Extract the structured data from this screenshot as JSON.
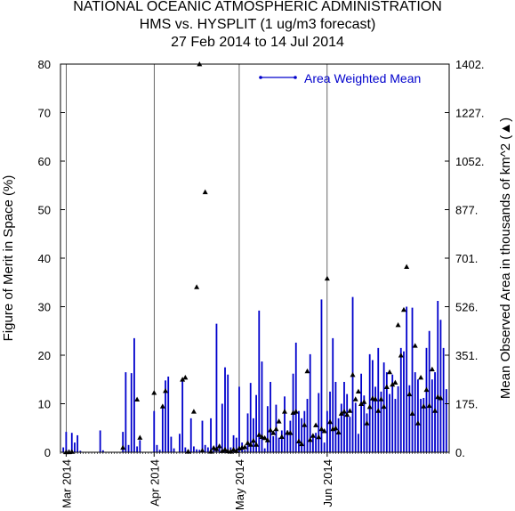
{
  "header": {
    "line1": "NATIONAL OCEANIC ATMOSPHERIC ADMINISTRATION",
    "line2": "HMS vs. HYSPLIT (1 ug/m3 forecast)",
    "line3": "27 Feb 2014 to 14 Jul 2014"
  },
  "colors": {
    "series": "#0000cc",
    "triangles": "#000000",
    "frame": "#000000",
    "gridlines": "#000000",
    "background": "#ffffff"
  },
  "chart_data": {
    "type": "bar",
    "title": "HMS vs. HYSPLIT (1 ug/m3 forecast)",
    "date_range": "27 Feb 2014 to 14 Jul 2014",
    "x_start": "2014-02-27",
    "x_end": "2014-07-14",
    "month_ticks": [
      {
        "date": "2014-03-01",
        "label": "Mar 2014"
      },
      {
        "date": "2014-04-01",
        "label": "Apr 2014"
      },
      {
        "date": "2014-05-01",
        "label": "May 2014"
      },
      {
        "date": "2014-06-01",
        "label": "Jun 2014"
      }
    ],
    "vertical_gridlines": [
      "2014-03-01",
      "2014-04-01",
      "2014-05-01",
      "2014-06-01"
    ],
    "ylabel_left": "Figure of Merit in Space (%)",
    "ylim_left": [
      0,
      80
    ],
    "yticks_left": [
      "0",
      "10",
      "20",
      "30",
      "40",
      "50",
      "60",
      "70",
      "80"
    ],
    "ylabel_right": "Mean Observed Area in thousands of km^2 (▲)",
    "ylim_right": [
      0,
      1402
    ],
    "yticks_right": [
      "0.",
      "175.",
      "351.",
      "526.",
      "701.",
      "877.",
      "1052.",
      "1227.",
      "1402."
    ],
    "legend": {
      "label": "Area Weighted Mean",
      "position": "top-right"
    },
    "series": [
      {
        "name": "Area Weighted Mean",
        "type": "bar",
        "axis": "left",
        "points": [
          [
            "2014-02-28",
            1.0
          ],
          [
            "2014-03-01",
            4.2
          ],
          [
            "2014-03-02",
            0.5
          ],
          [
            "2014-03-03",
            4.0
          ],
          [
            "2014-03-04",
            2.0
          ],
          [
            "2014-03-05",
            3.5
          ],
          [
            "2014-03-06",
            0.3
          ],
          [
            "2014-03-13",
            4.5
          ],
          [
            "2014-03-14",
            0.4
          ],
          [
            "2014-03-21",
            4.2
          ],
          [
            "2014-03-22",
            16.5
          ],
          [
            "2014-03-23",
            1.5
          ],
          [
            "2014-03-24",
            16.3
          ],
          [
            "2014-03-25",
            23.5
          ],
          [
            "2014-03-26",
            1.2
          ],
          [
            "2014-03-27",
            2.5
          ],
          [
            "2014-04-01",
            8.5
          ],
          [
            "2014-04-02",
            1.5
          ],
          [
            "2014-04-03",
            0.5
          ],
          [
            "2014-04-04",
            9.5
          ],
          [
            "2014-04-05",
            14.8
          ],
          [
            "2014-04-06",
            15.6
          ],
          [
            "2014-04-07",
            3.2
          ],
          [
            "2014-04-08",
            0.8
          ],
          [
            "2014-04-10",
            3.8
          ],
          [
            "2014-04-11",
            15.0
          ],
          [
            "2014-04-12",
            1.0
          ],
          [
            "2014-04-13",
            0.5
          ],
          [
            "2014-04-14",
            7.0
          ],
          [
            "2014-04-15",
            1.2
          ],
          [
            "2014-04-16",
            0.6
          ],
          [
            "2014-04-17",
            0.5
          ],
          [
            "2014-04-18",
            6.5
          ],
          [
            "2014-04-19",
            1.5
          ],
          [
            "2014-04-20",
            1.0
          ],
          [
            "2014-04-21",
            7.0
          ],
          [
            "2014-04-22",
            0.5
          ],
          [
            "2014-04-23",
            26.5
          ],
          [
            "2014-04-24",
            1.0
          ],
          [
            "2014-04-25",
            10.0
          ],
          [
            "2014-04-26",
            17.5
          ],
          [
            "2014-04-27",
            16.0
          ],
          [
            "2014-04-28",
            1.0
          ],
          [
            "2014-04-29",
            3.5
          ],
          [
            "2014-04-30",
            3.0
          ],
          [
            "2014-05-01",
            13.5
          ],
          [
            "2014-05-02",
            2.0
          ],
          [
            "2014-05-03",
            0.5
          ],
          [
            "2014-05-04",
            8.0
          ],
          [
            "2014-05-05",
            14.3
          ],
          [
            "2014-05-06",
            7.0
          ],
          [
            "2014-05-07",
            11.8
          ],
          [
            "2014-05-08",
            29.2
          ],
          [
            "2014-05-09",
            18.7
          ],
          [
            "2014-05-10",
            0.8
          ],
          [
            "2014-05-11",
            9.5
          ],
          [
            "2014-05-12",
            14.5
          ],
          [
            "2014-05-13",
            3.3
          ],
          [
            "2014-05-14",
            9.8
          ],
          [
            "2014-05-15",
            3.0
          ],
          [
            "2014-05-16",
            4.5
          ],
          [
            "2014-05-17",
            11.5
          ],
          [
            "2014-05-18",
            4.5
          ],
          [
            "2014-05-19",
            6.5
          ],
          [
            "2014-05-20",
            16.2
          ],
          [
            "2014-05-21",
            22.6
          ],
          [
            "2014-05-22",
            8.5
          ],
          [
            "2014-05-23",
            7.0
          ],
          [
            "2014-05-24",
            8.5
          ],
          [
            "2014-05-25",
            11.0
          ],
          [
            "2014-05-26",
            20.2
          ],
          [
            "2014-05-27",
            3.0
          ],
          [
            "2014-05-28",
            4.0
          ],
          [
            "2014-05-29",
            12.2
          ],
          [
            "2014-05-30",
            31.5
          ],
          [
            "2014-05-31",
            2.0
          ],
          [
            "2014-06-01",
            8.5
          ],
          [
            "2014-06-02",
            12.5
          ],
          [
            "2014-06-03",
            23.5
          ],
          [
            "2014-06-04",
            14.5
          ],
          [
            "2014-06-05",
            7.0
          ],
          [
            "2014-06-06",
            10.0
          ],
          [
            "2014-06-07",
            14.5
          ],
          [
            "2014-06-08",
            12.0
          ],
          [
            "2014-06-09",
            7.3
          ],
          [
            "2014-06-10",
            32.0
          ],
          [
            "2014-06-11",
            10.2
          ],
          [
            "2014-06-12",
            3.8
          ],
          [
            "2014-06-13",
            16.2
          ],
          [
            "2014-06-14",
            11.7
          ],
          [
            "2014-06-15",
            8.0
          ],
          [
            "2014-06-16",
            20.2
          ],
          [
            "2014-06-17",
            19.0
          ],
          [
            "2014-06-18",
            13.5
          ],
          [
            "2014-06-19",
            21.5
          ],
          [
            "2014-06-20",
            12.5
          ],
          [
            "2014-06-21",
            18.5
          ],
          [
            "2014-06-22",
            16.5
          ],
          [
            "2014-06-23",
            12.0
          ],
          [
            "2014-06-24",
            16.0
          ],
          [
            "2014-06-25",
            11.0
          ],
          [
            "2014-06-26",
            13.6
          ],
          [
            "2014-06-27",
            21.5
          ],
          [
            "2014-06-28",
            20.8
          ],
          [
            "2014-06-29",
            30.0
          ],
          [
            "2014-06-30",
            13.8
          ],
          [
            "2014-07-01",
            29.8
          ],
          [
            "2014-07-02",
            16.5
          ],
          [
            "2014-07-03",
            15.0
          ],
          [
            "2014-07-04",
            11.0
          ],
          [
            "2014-07-05",
            11.2
          ],
          [
            "2014-07-06",
            21.5
          ],
          [
            "2014-07-07",
            25.0
          ],
          [
            "2014-07-08",
            15.0
          ],
          [
            "2014-07-09",
            16.5
          ],
          [
            "2014-07-10",
            31.2
          ],
          [
            "2014-07-11",
            27.3
          ],
          [
            "2014-07-12",
            21.5
          ],
          [
            "2014-07-13",
            13.0
          ]
        ]
      },
      {
        "name": "Mean Observed Area",
        "type": "scatter",
        "marker": "triangle",
        "axis": "right",
        "points": [
          [
            "2014-03-01",
            1.0
          ],
          [
            "2014-03-02",
            1.0
          ],
          [
            "2014-03-03",
            2.0
          ],
          [
            "2014-03-21",
            17.0
          ],
          [
            "2014-03-26",
            191.0
          ],
          [
            "2014-03-27",
            53.0
          ],
          [
            "2014-04-01",
            215.0
          ],
          [
            "2014-04-04",
            166.0
          ],
          [
            "2014-04-05",
            222.0
          ],
          [
            "2014-04-11",
            263.0
          ],
          [
            "2014-04-12",
            270.0
          ],
          [
            "2014-04-13",
            3.0
          ],
          [
            "2014-04-15",
            147.0
          ],
          [
            "2014-04-16",
            597.0
          ],
          [
            "2014-04-17",
            1402.0
          ],
          [
            "2014-04-18",
            6.0
          ],
          [
            "2014-04-19",
            940.0
          ],
          [
            "2014-04-21",
            3.0
          ],
          [
            "2014-04-22",
            16.0
          ],
          [
            "2014-04-23",
            12.0
          ],
          [
            "2014-04-24",
            22.0
          ],
          [
            "2014-04-25",
            5.0
          ],
          [
            "2014-04-26",
            10.0
          ],
          [
            "2014-04-27",
            4.0
          ],
          [
            "2014-04-28",
            3.0
          ],
          [
            "2014-04-29",
            10.0
          ],
          [
            "2014-04-30",
            5.0
          ],
          [
            "2014-05-01",
            14.0
          ],
          [
            "2014-05-02",
            17.0
          ],
          [
            "2014-05-03",
            19.0
          ],
          [
            "2014-05-04",
            34.0
          ],
          [
            "2014-05-05",
            28.0
          ],
          [
            "2014-05-06",
            42.0
          ],
          [
            "2014-05-07",
            28.0
          ],
          [
            "2014-05-08",
            63.0
          ],
          [
            "2014-05-09",
            56.0
          ],
          [
            "2014-05-10",
            52.0
          ],
          [
            "2014-05-11",
            44.0
          ],
          [
            "2014-05-12",
            80.0
          ],
          [
            "2014-05-13",
            70.0
          ],
          [
            "2014-05-14",
            84.0
          ],
          [
            "2014-05-15",
            112.0
          ],
          [
            "2014-05-16",
            56.0
          ],
          [
            "2014-05-17",
            147.0
          ],
          [
            "2014-05-18",
            71.0
          ],
          [
            "2014-05-19",
            70.0
          ],
          [
            "2014-05-20",
            143.0
          ],
          [
            "2014-05-21",
            147.0
          ],
          [
            "2014-05-22",
            40.0
          ],
          [
            "2014-05-23",
            30.0
          ],
          [
            "2014-05-24",
            99.0
          ],
          [
            "2014-05-25",
            293.0
          ],
          [
            "2014-05-26",
            45.0
          ],
          [
            "2014-05-27",
            60.0
          ],
          [
            "2014-05-28",
            98.0
          ],
          [
            "2014-05-29",
            55.0
          ],
          [
            "2014-05-30",
            84.0
          ],
          [
            "2014-05-31",
            77.0
          ],
          [
            "2014-06-01",
            628.0
          ],
          [
            "2014-06-02",
            110.0
          ],
          [
            "2014-06-03",
            84.0
          ],
          [
            "2014-06-04",
            87.0
          ],
          [
            "2014-06-05",
            72.0
          ],
          [
            "2014-06-06",
            140.0
          ],
          [
            "2014-06-07",
            147.0
          ],
          [
            "2014-06-08",
            136.0
          ],
          [
            "2014-06-09",
            150.0
          ],
          [
            "2014-06-10",
            280.0
          ],
          [
            "2014-06-11",
            192.0
          ],
          [
            "2014-06-12",
            220.0
          ],
          [
            "2014-06-13",
            175.0
          ],
          [
            "2014-06-14",
            182.0
          ],
          [
            "2014-06-15",
            105.0
          ],
          [
            "2014-06-16",
            164.0
          ],
          [
            "2014-06-17",
            195.0
          ],
          [
            "2014-06-18",
            192.0
          ],
          [
            "2014-06-19",
            150.0
          ],
          [
            "2014-06-20",
            192.0
          ],
          [
            "2014-06-21",
            165.0
          ],
          [
            "2014-06-22",
            236.0
          ],
          [
            "2014-06-23",
            290.0
          ],
          [
            "2014-06-24",
            245.0
          ],
          [
            "2014-06-25",
            252.0
          ],
          [
            "2014-06-26",
            460.0
          ],
          [
            "2014-06-27",
            350.0
          ],
          [
            "2014-06-28",
            515.0
          ],
          [
            "2014-06-29",
            670.0
          ],
          [
            "2014-06-30",
            210.0
          ],
          [
            "2014-07-01",
            140.0
          ],
          [
            "2014-07-02",
            385.0
          ],
          [
            "2014-07-03",
            105.0
          ],
          [
            "2014-07-04",
            270.0
          ],
          [
            "2014-07-05",
            166.0
          ],
          [
            "2014-07-06",
            226.0
          ],
          [
            "2014-07-07",
            168.0
          ],
          [
            "2014-07-08",
            300.0
          ],
          [
            "2014-07-09",
            150.0
          ],
          [
            "2014-07-10",
            200.0
          ],
          [
            "2014-07-11",
            196.0
          ]
        ]
      }
    ]
  }
}
